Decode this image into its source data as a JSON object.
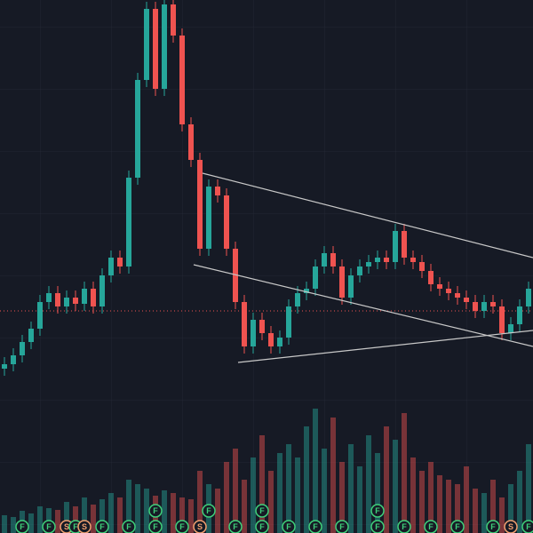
{
  "chart_data": {
    "type": "candlestick",
    "up_color": "#26a69a",
    "down_color": "#ef5350",
    "ylim": [
      0,
      600
    ],
    "vlim": [
      0,
      600
    ],
    "open": [
      185,
      190,
      200,
      215,
      230,
      260,
      270,
      255,
      265,
      258,
      275,
      255,
      290,
      310,
      300,
      400,
      510,
      590,
      500,
      595,
      560,
      460,
      420,
      320,
      390,
      380,
      320,
      260,
      210,
      240,
      225,
      210,
      220,
      255,
      270,
      275,
      300,
      315,
      300,
      265,
      290,
      300,
      305,
      310,
      305,
      340,
      310,
      305,
      295,
      280,
      275,
      270,
      265,
      260,
      250,
      260,
      255,
      225,
      235,
      255
    ],
    "high": [
      198,
      208,
      223,
      238,
      268,
      278,
      278,
      273,
      273,
      283,
      283,
      298,
      318,
      318,
      408,
      518,
      598,
      598,
      600,
      600,
      568,
      468,
      428,
      398,
      398,
      388,
      328,
      268,
      248,
      248,
      233,
      228,
      263,
      278,
      283,
      308,
      323,
      323,
      308,
      298,
      308,
      313,
      318,
      318,
      348,
      348,
      318,
      313,
      303,
      288,
      283,
      278,
      273,
      268,
      268,
      268,
      263,
      243,
      263,
      283
    ],
    "low": [
      177,
      182,
      192,
      207,
      222,
      252,
      247,
      247,
      250,
      250,
      247,
      247,
      282,
      292,
      292,
      392,
      502,
      492,
      492,
      552,
      452,
      412,
      312,
      312,
      372,
      312,
      252,
      202,
      202,
      217,
      202,
      202,
      212,
      247,
      262,
      267,
      292,
      292,
      257,
      257,
      282,
      292,
      297,
      297,
      297,
      302,
      297,
      287,
      272,
      267,
      262,
      257,
      252,
      242,
      242,
      247,
      217,
      217,
      227,
      247
    ],
    "close": [
      190,
      200,
      215,
      230,
      260,
      270,
      255,
      265,
      258,
      275,
      255,
      290,
      310,
      300,
      400,
      510,
      590,
      500,
      595,
      560,
      460,
      420,
      320,
      390,
      380,
      320,
      260,
      210,
      240,
      225,
      210,
      220,
      255,
      270,
      275,
      300,
      315,
      300,
      265,
      290,
      300,
      305,
      310,
      305,
      340,
      310,
      305,
      295,
      280,
      275,
      270,
      265,
      260,
      250,
      260,
      255,
      225,
      235,
      255,
      275
    ],
    "volume": [
      20,
      18,
      25,
      22,
      30,
      28,
      26,
      35,
      30,
      40,
      32,
      38,
      45,
      40,
      60,
      55,
      50,
      42,
      48,
      45,
      40,
      38,
      70,
      55,
      50,
      80,
      95,
      60,
      85,
      110,
      70,
      90,
      100,
      85,
      120,
      140,
      95,
      130,
      80,
      100,
      75,
      110,
      90,
      120,
      105,
      135,
      85,
      70,
      80,
      65,
      60,
      55,
      75,
      50,
      45,
      60,
      40,
      55,
      70,
      100
    ],
    "events": [
      {
        "index": 2,
        "label": "F"
      },
      {
        "index": 5,
        "label": "F"
      },
      {
        "index": 7,
        "label": "S"
      },
      {
        "index": 8,
        "label": "F"
      },
      {
        "index": 9,
        "label": "S"
      },
      {
        "index": 11,
        "label": "F"
      },
      {
        "index": 14,
        "label": "F"
      },
      {
        "index": 17,
        "label": "F"
      },
      {
        "index": 20,
        "label": "F"
      },
      {
        "index": 22,
        "label": "S"
      },
      {
        "index": 26,
        "label": "F"
      },
      {
        "index": 29,
        "label": "F"
      },
      {
        "index": 32,
        "label": "F"
      },
      {
        "index": 35,
        "label": "F"
      },
      {
        "index": 38,
        "label": "F"
      },
      {
        "index": 42,
        "label": "F"
      },
      {
        "index": 45,
        "label": "F"
      },
      {
        "index": 48,
        "label": "F"
      },
      {
        "index": 51,
        "label": "F"
      },
      {
        "index": 55,
        "label": "F"
      },
      {
        "index": 57,
        "label": "S"
      },
      {
        "index": 59,
        "label": "F"
      }
    ],
    "events_upper": [
      {
        "index": 17,
        "label": "F"
      },
      {
        "index": 23,
        "label": "F"
      },
      {
        "index": 29,
        "label": "F"
      },
      {
        "index": 42,
        "label": "F"
      }
    ]
  }
}
